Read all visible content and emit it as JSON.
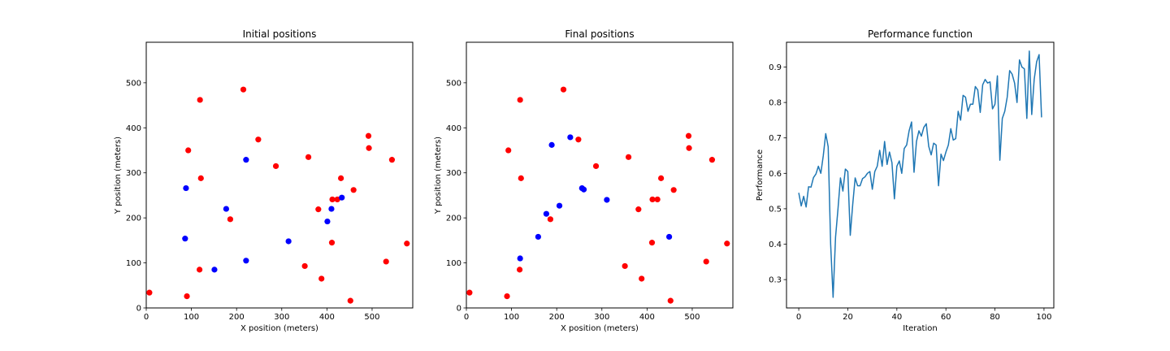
{
  "chart_data": [
    {
      "type": "scatter",
      "title": "Initial positions",
      "xlabel": "X position (meters)",
      "ylabel": "Y position (meters)",
      "xlim": [
        0,
        590
      ],
      "ylim": [
        0,
        590
      ],
      "xticks": [
        0,
        100,
        200,
        300,
        400,
        500
      ],
      "yticks": [
        0,
        100,
        200,
        300,
        400,
        500
      ],
      "grid": false,
      "series": [
        {
          "name": "red",
          "color": "#ff0000",
          "points": [
            [
              7,
              34
            ],
            [
              90,
              26
            ],
            [
              93,
              350
            ],
            [
              118,
              85
            ],
            [
              119,
              462
            ],
            [
              121,
              288
            ],
            [
              186,
              197
            ],
            [
              215,
              485
            ],
            [
              248,
              374
            ],
            [
              287,
              315
            ],
            [
              351,
              93
            ],
            [
              359,
              335
            ],
            [
              381,
              219
            ],
            [
              388,
              65
            ],
            [
              411,
              145
            ],
            [
              412,
              241
            ],
            [
              423,
              241
            ],
            [
              431,
              288
            ],
            [
              452,
              16
            ],
            [
              459,
              262
            ],
            [
              492,
              382
            ],
            [
              493,
              355
            ],
            [
              531,
              103
            ],
            [
              544,
              329
            ],
            [
              577,
              143
            ]
          ]
        },
        {
          "name": "blue",
          "color": "#0000ff",
          "points": [
            [
              86,
              154
            ],
            [
              88,
              266
            ],
            [
              151,
              85
            ],
            [
              177,
              220
            ],
            [
              221,
              105
            ],
            [
              221,
              329
            ],
            [
              315,
              148
            ],
            [
              401,
              192
            ],
            [
              410,
              220
            ],
            [
              433,
              245
            ]
          ]
        }
      ]
    },
    {
      "type": "scatter",
      "title": "Final positions",
      "xlabel": "X position (meters)",
      "ylabel": "Y position (meters)",
      "xlim": [
        0,
        590
      ],
      "ylim": [
        0,
        590
      ],
      "xticks": [
        0,
        100,
        200,
        300,
        400,
        500
      ],
      "yticks": [
        0,
        100,
        200,
        300,
        400,
        500
      ],
      "grid": false,
      "series": [
        {
          "name": "red",
          "color": "#ff0000",
          "points": [
            [
              7,
              34
            ],
            [
              90,
              26
            ],
            [
              93,
              350
            ],
            [
              118,
              85
            ],
            [
              119,
              462
            ],
            [
              121,
              288
            ],
            [
              186,
              197
            ],
            [
              215,
              485
            ],
            [
              248,
              374
            ],
            [
              287,
              315
            ],
            [
              351,
              93
            ],
            [
              359,
              335
            ],
            [
              381,
              219
            ],
            [
              388,
              65
            ],
            [
              411,
              145
            ],
            [
              412,
              241
            ],
            [
              423,
              241
            ],
            [
              431,
              288
            ],
            [
              452,
              16
            ],
            [
              459,
              262
            ],
            [
              492,
              382
            ],
            [
              493,
              355
            ],
            [
              531,
              103
            ],
            [
              544,
              329
            ],
            [
              577,
              143
            ]
          ]
        },
        {
          "name": "blue",
          "color": "#0000ff",
          "points": [
            [
              119,
              110
            ],
            [
              159,
              158
            ],
            [
              177,
              209
            ],
            [
              189,
              362
            ],
            [
              206,
              227
            ],
            [
              230,
              379
            ],
            [
              256,
              266
            ],
            [
              260,
              263
            ],
            [
              311,
              240
            ],
            [
              449,
              158
            ]
          ]
        }
      ]
    },
    {
      "type": "line",
      "title": "Performance function",
      "xlabel": "Iteration",
      "ylabel": "Performance",
      "xlim": [
        -5,
        104
      ],
      "ylim": [
        0.22,
        0.97
      ],
      "xticks": [
        0,
        20,
        40,
        60,
        80,
        100
      ],
      "yticks": [
        0.3,
        0.4,
        0.5,
        0.6,
        0.7,
        0.8,
        0.9
      ],
      "grid": false,
      "series": [
        {
          "name": "performance",
          "color": "#1f77b4",
          "x": [
            0,
            1,
            2,
            3,
            4,
            5,
            6,
            7,
            8,
            9,
            10,
            11,
            12,
            13,
            14,
            15,
            16,
            17,
            18,
            19,
            20,
            21,
            22,
            23,
            24,
            25,
            26,
            27,
            28,
            29,
            30,
            31,
            32,
            33,
            34,
            35,
            36,
            37,
            38,
            39,
            40,
            41,
            42,
            43,
            44,
            45,
            46,
            47,
            48,
            49,
            50,
            51,
            52,
            53,
            54,
            55,
            56,
            57,
            58,
            59,
            60,
            61,
            62,
            63,
            64,
            65,
            66,
            67,
            68,
            69,
            70,
            71,
            72,
            73,
            74,
            75,
            76,
            77,
            78,
            79,
            80,
            81,
            82,
            83,
            84,
            85,
            86,
            87,
            88,
            89,
            90,
            91,
            92,
            93,
            94,
            95,
            96,
            97,
            98,
            99
          ],
          "values": [
            0.545,
            0.508,
            0.535,
            0.505,
            0.562,
            0.561,
            0.588,
            0.598,
            0.62,
            0.6,
            0.65,
            0.712,
            0.675,
            0.4,
            0.25,
            0.42,
            0.5,
            0.587,
            0.55,
            0.612,
            0.605,
            0.425,
            0.512,
            0.587,
            0.565,
            0.565,
            0.585,
            0.59,
            0.6,
            0.605,
            0.555,
            0.605,
            0.62,
            0.665,
            0.62,
            0.69,
            0.625,
            0.66,
            0.63,
            0.528,
            0.62,
            0.635,
            0.6,
            0.67,
            0.68,
            0.72,
            0.745,
            0.603,
            0.69,
            0.72,
            0.705,
            0.73,
            0.74,
            0.676,
            0.652,
            0.685,
            0.68,
            0.565,
            0.654,
            0.636,
            0.66,
            0.68,
            0.726,
            0.694,
            0.698,
            0.775,
            0.75,
            0.82,
            0.815,
            0.775,
            0.795,
            0.795,
            0.845,
            0.835,
            0.772,
            0.85,
            0.865,
            0.855,
            0.858,
            0.782,
            0.795,
            0.875,
            0.637,
            0.755,
            0.775,
            0.815,
            0.89,
            0.88,
            0.855,
            0.8,
            0.92,
            0.9,
            0.895,
            0.755,
            0.945,
            0.766,
            0.865,
            0.915,
            0.935,
            0.758
          ]
        }
      ]
    }
  ]
}
